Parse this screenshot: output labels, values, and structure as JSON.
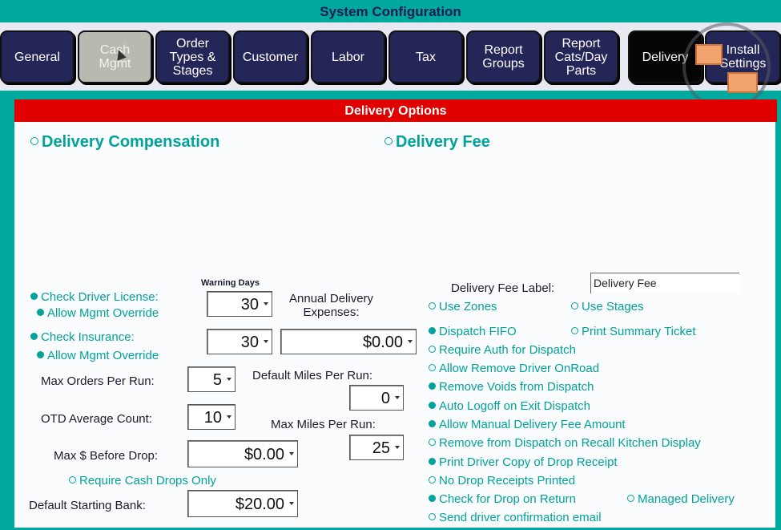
{
  "window": {
    "title": "System Configuration"
  },
  "tabs": [
    {
      "label": "General",
      "state": "normal"
    },
    {
      "label": "Cash\nMgmt",
      "state": "inactive"
    },
    {
      "label": "Order\nTypes &\nStages",
      "state": "normal"
    },
    {
      "label": "Customer",
      "state": "normal"
    },
    {
      "label": "Labor",
      "state": "normal"
    },
    {
      "label": "Tax",
      "state": "normal"
    },
    {
      "label": "Report\nGroups",
      "state": "normal"
    },
    {
      "label": "Report\nCats/Day\nParts",
      "state": "normal"
    },
    {
      "label": "Delivery",
      "state": "active"
    },
    {
      "label": "Install\nSettings",
      "state": "normal"
    }
  ],
  "panel": {
    "header": "Delivery Options",
    "sections": {
      "compensation": "Delivery Compensation",
      "fee": "Delivery Fee"
    }
  },
  "left": {
    "warning_days": "Warning Days",
    "check_driver_license": "Check Driver License:",
    "allow_mgmt_override_1": "Allow Mgmt Override",
    "check_insurance": "Check Insurance:",
    "allow_mgmt_override_2": "Allow Mgmt Override",
    "license_days": "30",
    "insurance_days": "30",
    "annual_expenses_label": "Annual Delivery\nExpenses:",
    "annual_expenses_value": "$0.00",
    "max_orders_label": "Max Orders Per Run:",
    "max_orders_value": "5",
    "default_miles_label": "Default Miles Per Run:",
    "default_miles_value": "0",
    "otd_label": "OTD Average Count:",
    "otd_value": "10",
    "max_miles_label": "Max Miles Per Run:",
    "max_miles_value": "25",
    "max_before_drop_label": "Max $ Before Drop:",
    "max_before_drop_value": "$0.00",
    "require_cash_drops": "Require Cash Drops Only",
    "default_bank_label": "Default Starting Bank:",
    "default_bank_value": "$20.00"
  },
  "right": {
    "fee_label_label": "Delivery Fee Label:",
    "fee_label_value": "Delivery Fee",
    "use_zones": "Use Zones",
    "use_stages": "Use Stages",
    "dispatch_fifo": "Dispatch FIFO",
    "print_summary": "Print Summary Ticket",
    "require_auth": "Require Auth for Dispatch",
    "allow_remove_driver": "Allow Remove Driver OnRoad",
    "remove_voids": "Remove Voids from Dispatch",
    "auto_logoff": "Auto Logoff on Exit Dispatch",
    "allow_manual_fee": "Allow Manual Delivery Fee Amount",
    "remove_recall": "Remove from Dispatch on Recall Kitchen Display",
    "print_driver_copy": "Print Driver Copy of Drop Receipt",
    "no_drop_receipts": "No Drop Receipts Printed",
    "check_drop_return": "Check for Drop on Return",
    "managed_delivery": "Managed Delivery",
    "send_email": "Send driver confirmation email"
  },
  "colors": {
    "teal": "#00a99d",
    "navy": "#232656",
    "red": "#e00000"
  }
}
